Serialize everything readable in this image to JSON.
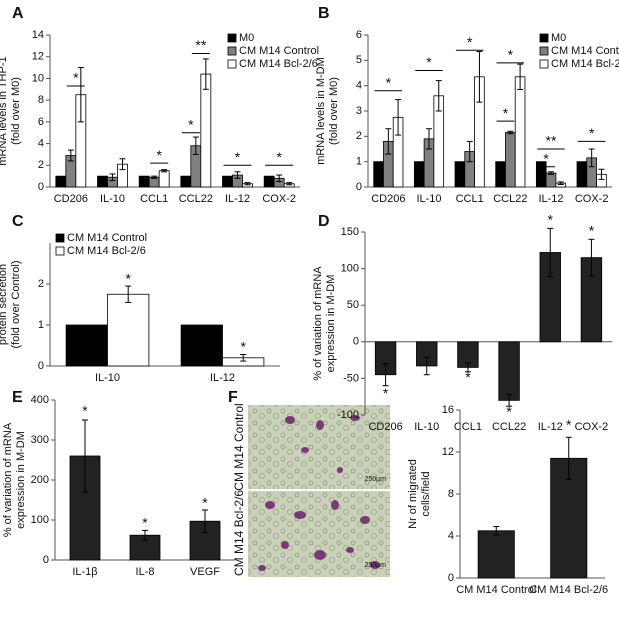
{
  "chart_data": [
    {
      "type": "bar",
      "panel": "A",
      "y_label": [
        "mRNA levels in THP-1",
        "(fold over M0)"
      ],
      "categories": [
        "CD206",
        "IL-10",
        "CCL1",
        "CCL22",
        "IL-12",
        "COX-2"
      ],
      "series": [
        {
          "name": "M0",
          "color": "#000000",
          "values": [
            1,
            1,
            1,
            1,
            1,
            1
          ]
        },
        {
          "name": "CM M14 Control",
          "color": "#808080",
          "values": [
            2.9,
            0.9,
            0.9,
            3.8,
            1.1,
            0.8
          ],
          "errors": [
            0.5,
            0.3,
            0.1,
            0.8,
            0.3,
            0.3
          ]
        },
        {
          "name": "CM M14 Bcl-2/6",
          "color": "#ffffff",
          "values": [
            8.5,
            2.1,
            1.5,
            10.4,
            0.3,
            0.3
          ],
          "errors": [
            2.5,
            0.5,
            0.1,
            1.4,
            0.1,
            0.1
          ]
        }
      ],
      "ylim": [
        0,
        14
      ],
      "yticks": [
        0,
        2,
        4,
        6,
        8,
        10,
        12,
        14
      ],
      "legend": "upper right",
      "annotations": [
        "*",
        "*",
        "*",
        "**",
        "*",
        "*"
      ]
    },
    {
      "type": "bar",
      "panel": "B",
      "y_label": [
        "mRNA levels in M-DM",
        "(fold over M0)"
      ],
      "categories": [
        "CD206",
        "IL-10",
        "CCL1",
        "CCL22",
        "IL-12",
        "COX-2"
      ],
      "series": [
        {
          "name": "M0",
          "color": "#000000",
          "values": [
            1,
            1,
            1,
            1,
            1,
            1
          ]
        },
        {
          "name": "CM M14 Control",
          "color": "#808080",
          "values": [
            1.8,
            1.9,
            1.4,
            2.15,
            0.55,
            1.15
          ],
          "errors": [
            0.5,
            0.4,
            0.4,
            0.05,
            0.05,
            0.35
          ]
        },
        {
          "name": "CM M14 Bcl-2/6",
          "color": "#ffffff",
          "values": [
            2.75,
            3.6,
            4.35,
            4.35,
            0.15,
            0.5
          ],
          "errors": [
            0.7,
            0.6,
            1.0,
            0.5,
            0.05,
            0.2
          ]
        }
      ],
      "ylim": [
        0,
        6
      ],
      "yticks": [
        0,
        1,
        2,
        3,
        4,
        5,
        6
      ],
      "legend": "upper right",
      "annotations": [
        "*",
        "*",
        "*",
        "*",
        "*",
        "**",
        "*",
        "*"
      ]
    },
    {
      "type": "bar",
      "panel": "C",
      "y_label": [
        "protein secretion",
        "(fold over Control)"
      ],
      "categories": [
        "IL-10",
        "IL-12"
      ],
      "series": [
        {
          "name": "CM M14 Control",
          "color": "#000000",
          "values": [
            1,
            1
          ]
        },
        {
          "name": "CM M14 Bcl-2/6",
          "color": "#ffffff",
          "values": [
            1.75,
            0.2
          ],
          "errors": [
            0.2,
            0.08
          ]
        }
      ],
      "ylim": [
        0,
        3
      ],
      "yticks": [
        0,
        1,
        2
      ],
      "legend": "upper left",
      "annotations": [
        "*",
        "*"
      ]
    },
    {
      "type": "bar",
      "panel": "D",
      "y_label": [
        "% of variation of mRNA",
        "expression in M-DM"
      ],
      "categories": [
        "CD206",
        "IL-10",
        "CCL1",
        "CCL22",
        "IL-12",
        "COX-2"
      ],
      "values": [
        -45,
        -33,
        -35,
        -80,
        122,
        115
      ],
      "errors": [
        15,
        12,
        6,
        8,
        33,
        25
      ],
      "color": "#222222",
      "ylim": [
        -100,
        150
      ],
      "yticks": [
        -100,
        -50,
        0,
        50,
        100,
        150
      ],
      "annotations": [
        "*",
        "*",
        "*",
        "*",
        "*"
      ]
    },
    {
      "type": "bar",
      "panel": "E",
      "y_label": [
        "% of variation of mRNA",
        "expression in M-DM"
      ],
      "categories": [
        "IL-1β",
        "IL-8",
        "VEGF"
      ],
      "values": [
        260,
        62,
        97
      ],
      "errors": [
        90,
        12,
        28
      ],
      "color": "#222222",
      "ylim": [
        0,
        400
      ],
      "yticks": [
        0,
        100,
        200,
        300,
        400
      ],
      "annotations": [
        "*",
        "*",
        "*"
      ]
    },
    {
      "type": "bar",
      "panel": "F",
      "y_label": [
        "Nr of migrated",
        "cells/field"
      ],
      "categories": [
        "CM M14 Control",
        "CM M14 Bcl-2/6"
      ],
      "values": [
        4.5,
        11.4
      ],
      "errors": [
        0.4,
        2.0
      ],
      "color": "#222222",
      "ylim": [
        0,
        16
      ],
      "yticks": [
        0,
        4,
        8,
        12,
        16
      ],
      "annotations": [
        "*"
      ],
      "images": [
        {
          "label": "CM M14 Control",
          "scale": "250µm"
        },
        {
          "label": "CM M14 Bcl-2/6",
          "scale": "250µm"
        }
      ]
    }
  ]
}
